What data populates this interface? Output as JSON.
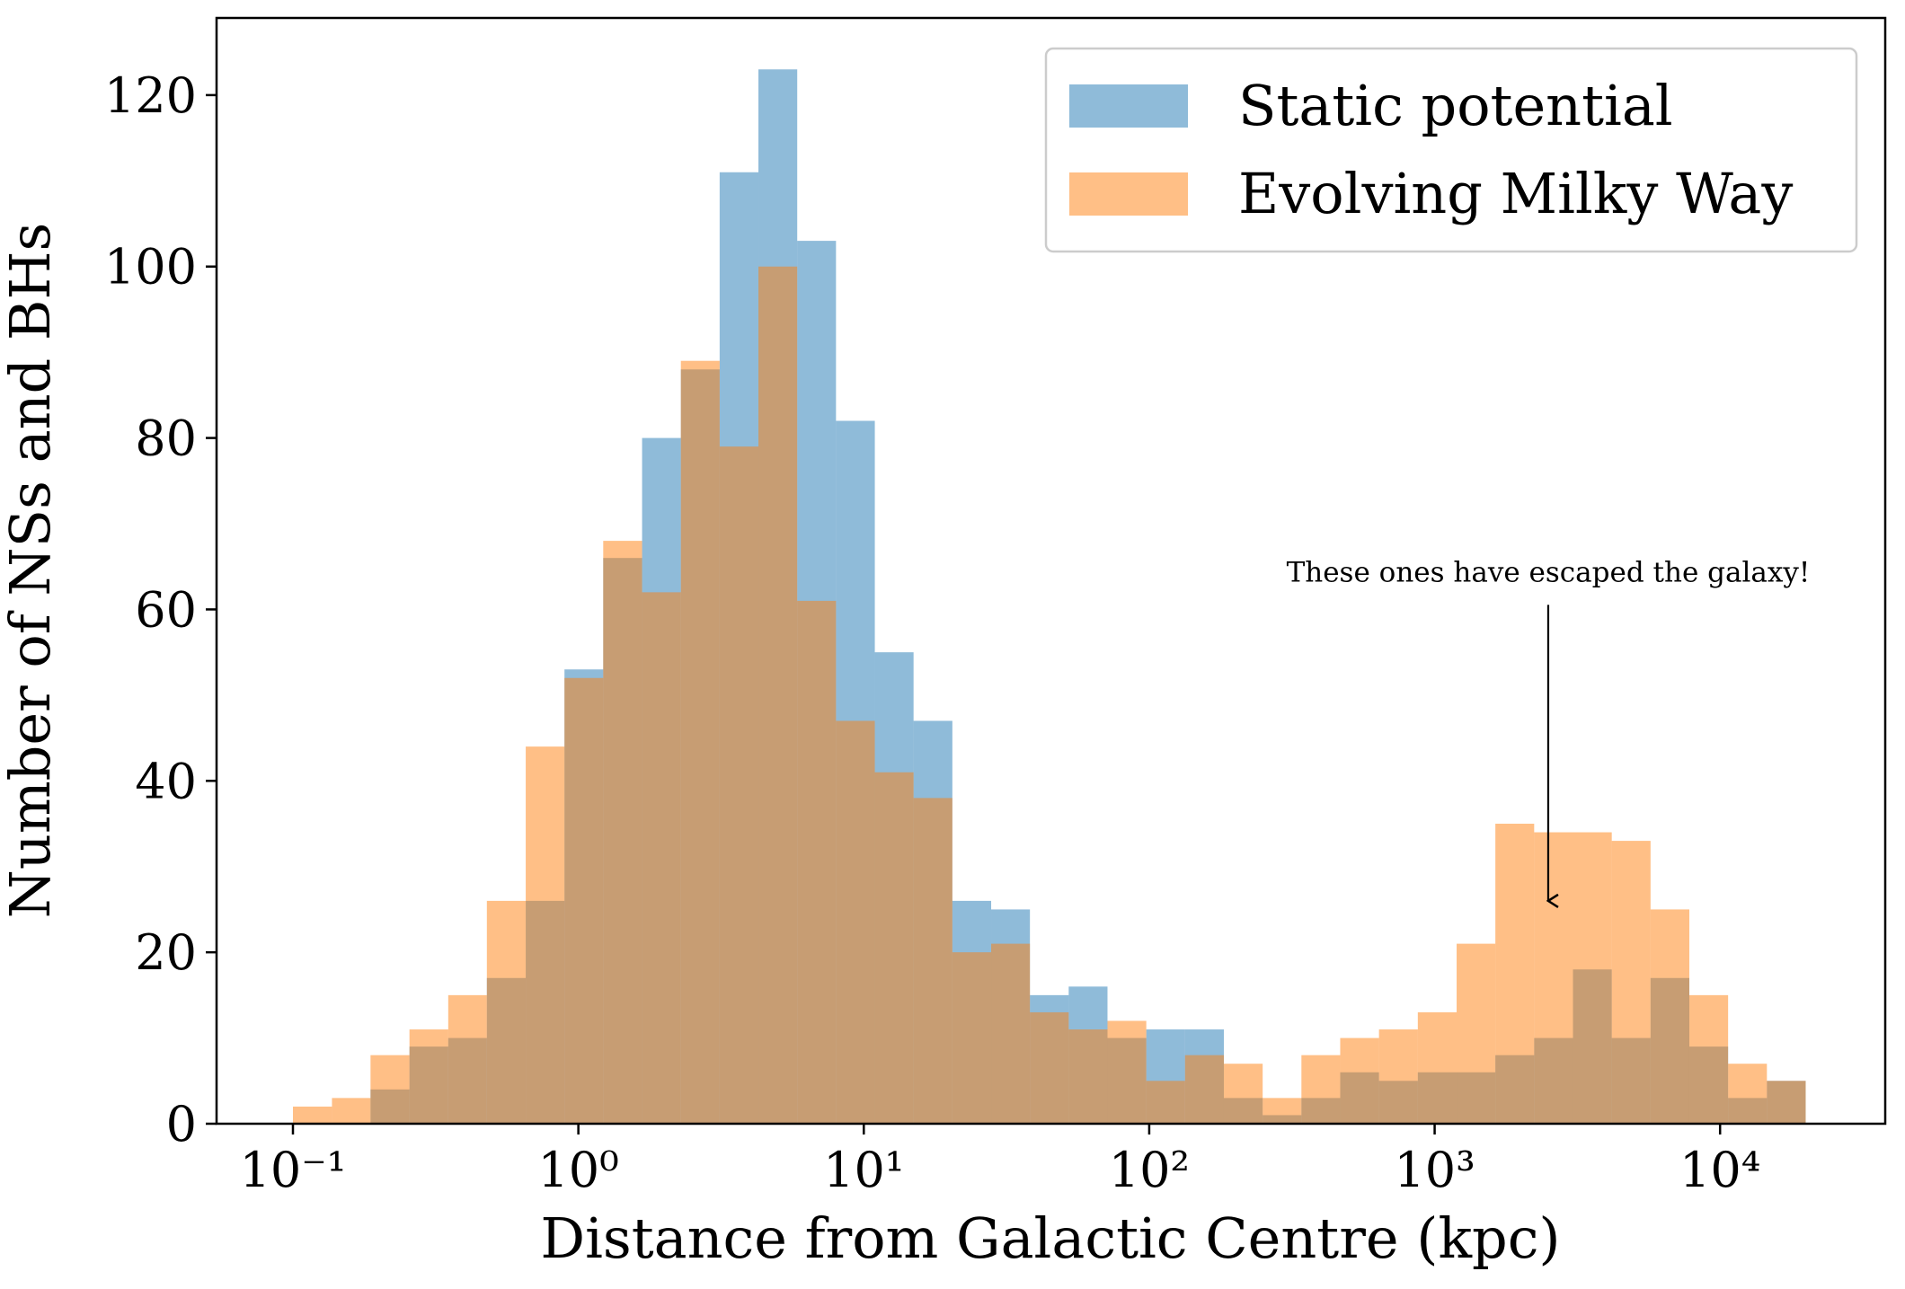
{
  "chart_data": {
    "type": "histogram",
    "xlabel": "Distance from Galactic Centre (kpc)",
    "ylabel": "Number of NSs and BHs",
    "xscale": "log",
    "bins": [
      0.1,
      0.137,
      0.187,
      0.256,
      0.35,
      0.478,
      0.654,
      0.894,
      1.222,
      1.672,
      2.286,
      3.126,
      4.274,
      5.845,
      7.991,
      10.93,
      14.94,
      20.43,
      27.94,
      38.2,
      52.23,
      71.42,
      97.66,
      133.5,
      182.6,
      249.7,
      341.4,
      466.8,
      638.3,
      873,
      1194,
      1632,
      2232,
      3052,
      4174,
      5707,
      7804,
      10670,
      14590,
      19950
    ],
    "series": [
      {
        "name": "Static potential",
        "color": "#1f77b4",
        "opacity": 0.5,
        "values": [
          0,
          0,
          4,
          9,
          10,
          17,
          26,
          53,
          66,
          80,
          88,
          111,
          123,
          103,
          82,
          55,
          47,
          26,
          25,
          15,
          16,
          10,
          11,
          11,
          3,
          1,
          3,
          6,
          5,
          6,
          6,
          8,
          10,
          18,
          10,
          17,
          9,
          3,
          5
        ]
      },
      {
        "name": "Evolving Milky Way",
        "color": "#ff7f0e",
        "opacity": 0.5,
        "values": [
          2,
          3,
          8,
          11,
          15,
          26,
          44,
          52,
          68,
          62,
          89,
          79,
          100,
          61,
          47,
          41,
          38,
          20,
          21,
          13,
          11,
          12,
          5,
          8,
          7,
          3,
          8,
          10,
          11,
          13,
          21,
          35,
          34,
          34,
          33,
          25,
          15,
          7,
          5
        ]
      }
    ],
    "xlim": [
      0.054,
      37900
    ],
    "ylim": [
      0,
      129
    ],
    "xticks": [
      {
        "value": 0.1,
        "label": "10⁻¹"
      },
      {
        "value": 1,
        "label": "10⁰"
      },
      {
        "value": 10,
        "label": "10¹"
      },
      {
        "value": 100,
        "label": "10²"
      },
      {
        "value": 1000,
        "label": "10³"
      },
      {
        "value": 10000,
        "label": "10⁴"
      }
    ],
    "yticks": [
      0,
      20,
      40,
      60,
      80,
      100,
      120
    ],
    "legend": "upper right",
    "annotation": {
      "text": "These ones have escaped the galaxy!",
      "xy": [
        2500,
        26
      ],
      "xytext": [
        2500,
        62
      ]
    }
  }
}
